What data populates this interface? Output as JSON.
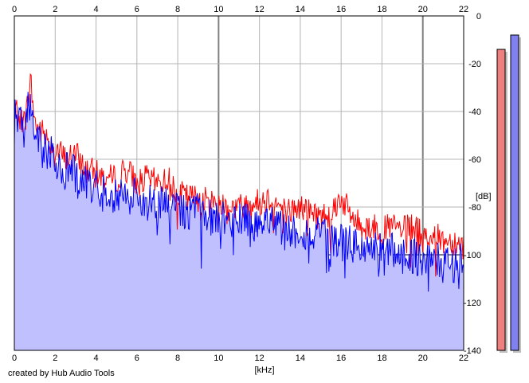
{
  "credit": "created by Hub Audio Tools",
  "colors": {
    "background": "#ffffff",
    "grid": "#b4b4b4",
    "grid_major": "#808080",
    "fill": "#c0c0ff",
    "left_channel": "#ff0000",
    "right_channel": "#0000ff",
    "meter_left": "#f08080",
    "meter_right": "#8080f0"
  },
  "chart_data": {
    "type": "line",
    "xlabel": "[kHz]",
    "ylabel": "[dB]",
    "xlim": [
      0,
      22
    ],
    "ylim": [
      -140,
      0
    ],
    "x_ticks": [
      0,
      2,
      4,
      6,
      8,
      10,
      12,
      14,
      16,
      18,
      20,
      22
    ],
    "y_ticks": [
      0,
      -20,
      -40,
      -60,
      -80,
      -100,
      -120,
      -140
    ],
    "y_tick_labels": [
      "0",
      "-20",
      "-40",
      "-60",
      "-80",
      "-100",
      "-120",
      "-140"
    ],
    "grid": true,
    "series": [
      {
        "color": "#ff0000",
        "x": [
          0,
          0.5,
          0.8,
          1,
          1.5,
          2,
          2.5,
          3,
          3.5,
          4,
          4.5,
          5,
          5.5,
          6,
          6.5,
          7,
          7.5,
          8,
          8.5,
          9,
          9.5,
          10,
          10.5,
          11,
          11.5,
          12,
          12.5,
          13,
          13.5,
          14,
          14.5,
          15,
          15.5,
          16,
          16.5,
          17,
          17.5,
          18,
          18.5,
          19,
          19.5,
          20,
          20.5,
          21,
          21.5,
          22
        ],
        "values": [
          -38,
          -45,
          -27,
          -45,
          -50,
          -55,
          -60,
          -58,
          -64,
          -66,
          -68,
          -68,
          -64,
          -70,
          -68,
          -70,
          -68,
          -74,
          -76,
          -76,
          -78,
          -78,
          -80,
          -80,
          -78,
          -78,
          -76,
          -80,
          -82,
          -80,
          -82,
          -84,
          -82,
          -76,
          -84,
          -88,
          -88,
          -90,
          -88,
          -90,
          -88,
          -92,
          -92,
          -94,
          -94,
          -96
        ]
      },
      {
        "color": "#0000ff",
        "x": [
          0,
          0.5,
          0.8,
          1,
          1.5,
          2,
          2.5,
          3,
          3.5,
          4,
          4.5,
          5,
          5.5,
          6,
          6.5,
          7,
          7.5,
          8,
          8.5,
          9,
          9.5,
          10,
          10.5,
          11,
          11.5,
          12,
          12.5,
          13,
          13.5,
          14,
          14.5,
          15,
          15.5,
          16,
          16.5,
          17,
          17.5,
          18,
          18.5,
          19,
          19.5,
          20,
          20.5,
          21,
          21.5,
          22
        ],
        "values": [
          -40,
          -48,
          -33,
          -50,
          -55,
          -60,
          -64,
          -66,
          -70,
          -72,
          -74,
          -74,
          -75,
          -76,
          -78,
          -78,
          -80,
          -80,
          -82,
          -82,
          -84,
          -84,
          -86,
          -86,
          -86,
          -88,
          -88,
          -88,
          -90,
          -90,
          -92,
          -92,
          -94,
          -94,
          -96,
          -96,
          -98,
          -98,
          -98,
          -100,
          -100,
          -102,
          -102,
          -104,
          -104,
          -100
        ]
      }
    ],
    "meters": {
      "left_level_db": -14,
      "right_level_db": -8
    }
  }
}
